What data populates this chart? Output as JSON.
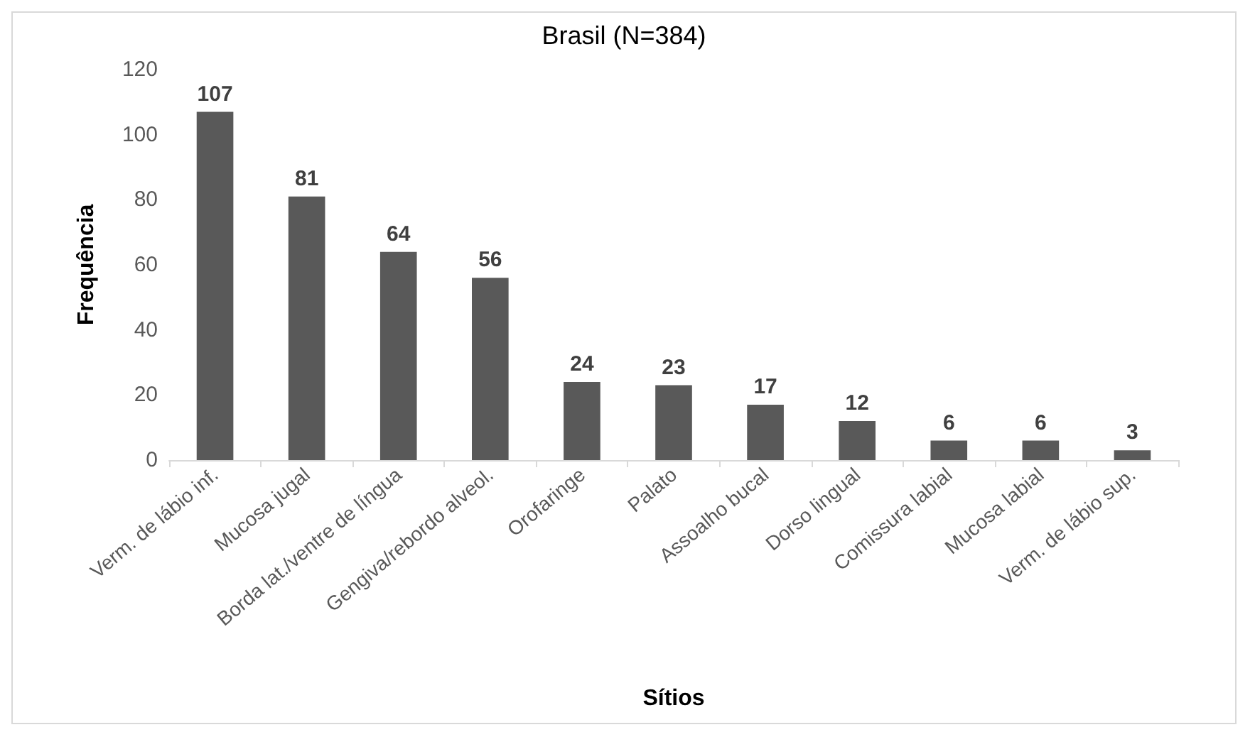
{
  "chart_data": {
    "type": "bar",
    "title": "Brasil (N=384)",
    "xlabel": "Sítios",
    "ylabel": "Frequência",
    "categories": [
      "Verm. de lábio inf.",
      "Mucosa jugal",
      "Borda lat./ventre de língua",
      "Gengiva/rebordo alveol.",
      "Orofaringe",
      "Palato",
      "Assoalho bucal",
      "Dorso lingual",
      "Comissura labial",
      "Mucosa labial",
      "Verm. de lábio sup."
    ],
    "values": [
      107,
      81,
      64,
      56,
      24,
      23,
      17,
      12,
      6,
      6,
      3
    ],
    "color": "#595959",
    "ylim": [
      0,
      120
    ],
    "yticks": [
      0,
      20,
      40,
      60,
      80,
      100,
      120
    ],
    "grid": false,
    "data_labels": true
  }
}
